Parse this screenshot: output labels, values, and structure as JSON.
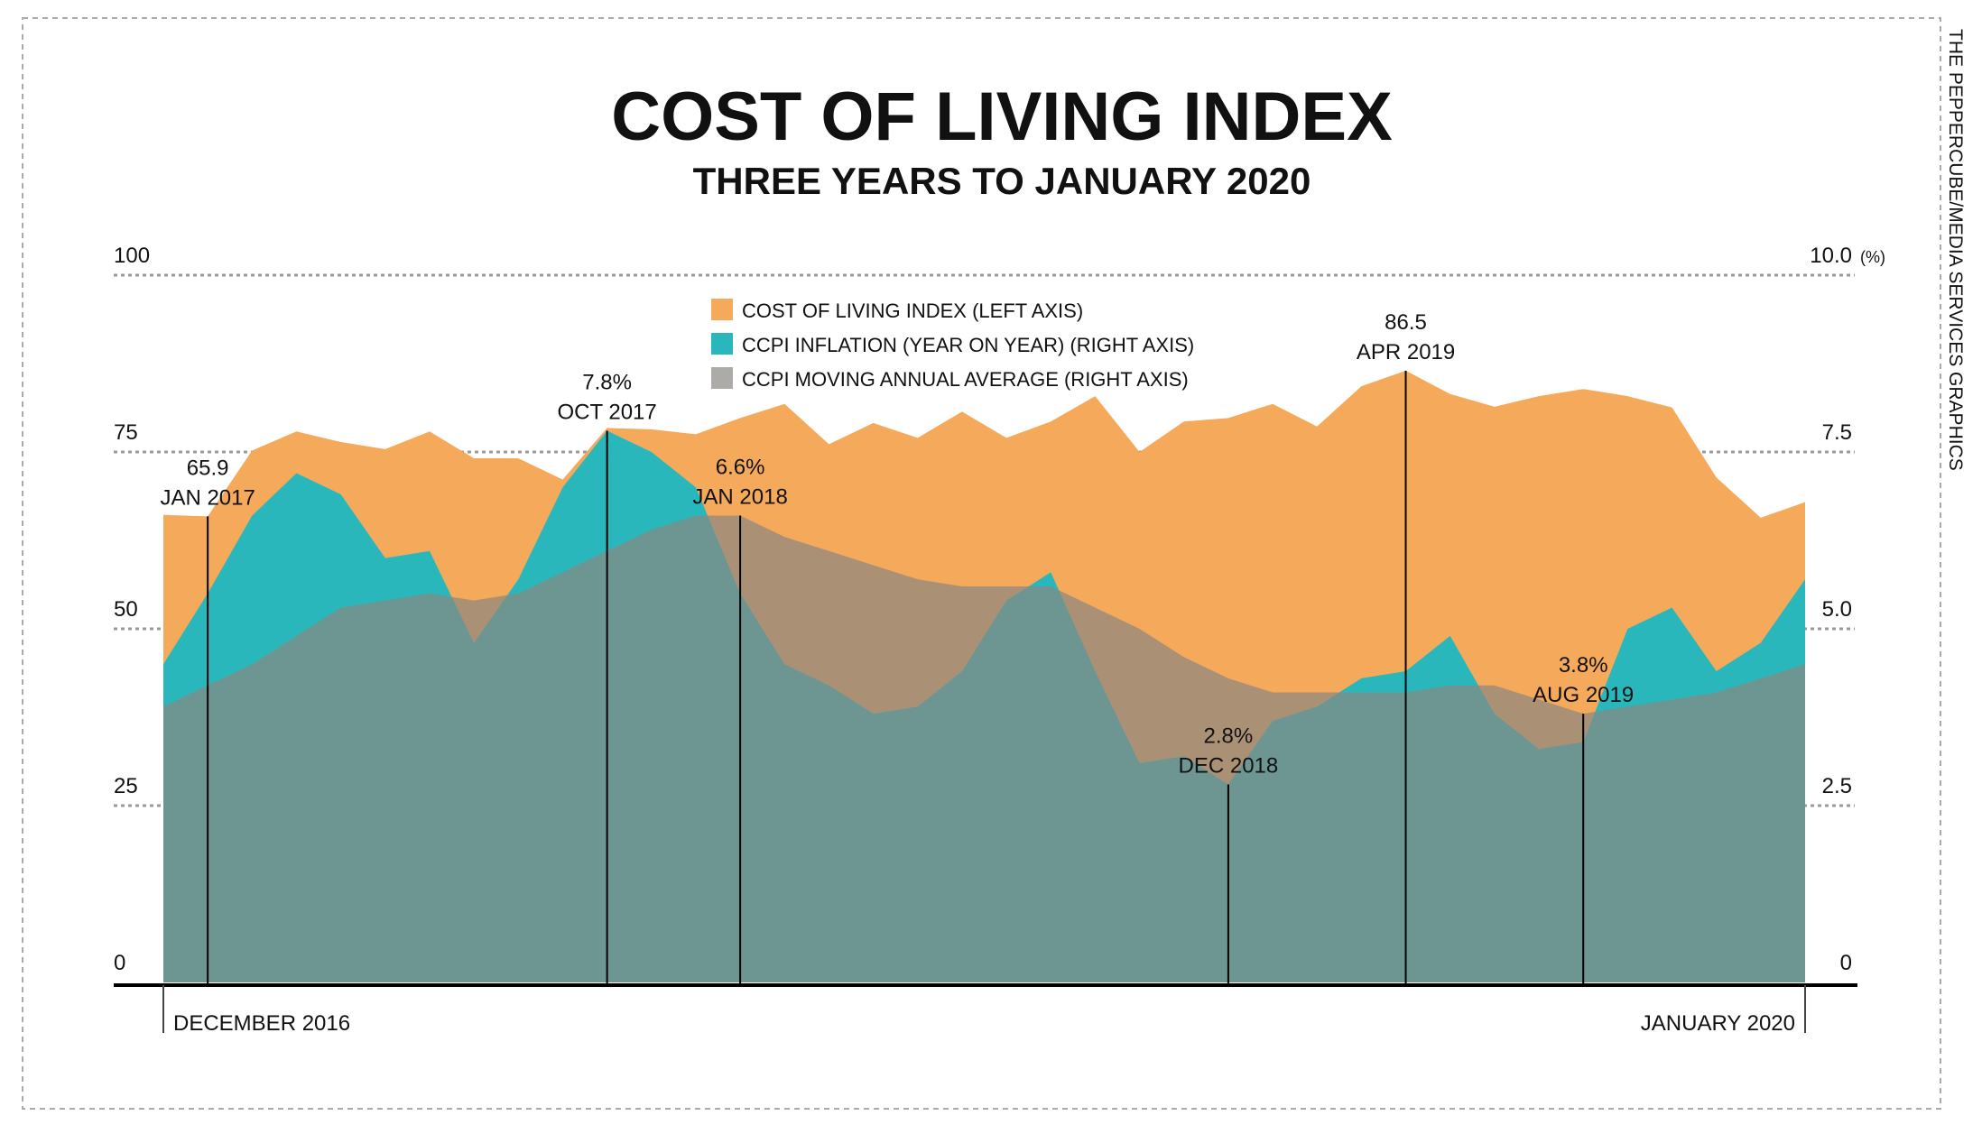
{
  "chart_data": {
    "type": "area",
    "title": "COST OF LIVING INDEX",
    "subtitle": "THREE YEARS TO JANUARY 2020",
    "credit": "THE PEPPERCUBE/MEDIA SERVICES GRAPHICS",
    "categories": [
      "DECEMBER 2016",
      null,
      null,
      null,
      null,
      null,
      null,
      null,
      null,
      null,
      null,
      null,
      null,
      null,
      null,
      null,
      null,
      null,
      null,
      null,
      null,
      null,
      null,
      null,
      null,
      null,
      null,
      null,
      null,
      null,
      null,
      null,
      null,
      null,
      null,
      null,
      null,
      "JANUARY 2020"
    ],
    "annotation_dates": [
      null,
      "JAN 2017",
      null,
      null,
      null,
      null,
      null,
      null,
      null,
      null,
      "OCT 2017",
      null,
      null,
      "JAN 2018",
      null,
      null,
      null,
      null,
      null,
      null,
      null,
      null,
      null,
      null,
      "DEC 2018",
      null,
      null,
      null,
      "APR 2019",
      null,
      null,
      null,
      "AUG 2019",
      null,
      null,
      null,
      null,
      null
    ],
    "series": [
      {
        "name": "COST OF LIVING INDEX (LEFT AXIS)",
        "color": "#f5a95a",
        "opacity": 1,
        "values": [
          66.1,
          65.9,
          75.2,
          77.9,
          76.4,
          75.4,
          77.9,
          74.1,
          74.1,
          71.1,
          78.4,
          78.2,
          77.5,
          79.8,
          81.8,
          76.1,
          79.1,
          77.0,
          80.7,
          77.0,
          79.3,
          82.9,
          75.0,
          79.3,
          79.8,
          81.8,
          78.6,
          84.3,
          86.5,
          83.2,
          81.4,
          82.9,
          83.9,
          82.9,
          81.3,
          71.4,
          65.7,
          67.9
        ],
        "value_labels": [
          null,
          "65.9",
          null,
          null,
          null,
          null,
          null,
          null,
          null,
          null,
          null,
          null,
          null,
          null,
          null,
          null,
          null,
          null,
          null,
          null,
          null,
          null,
          null,
          null,
          null,
          null,
          null,
          null,
          "86.5",
          null,
          null,
          null,
          null,
          null,
          null,
          null,
          null,
          null
        ]
      },
      {
        "name": "CCPI INFLATION (YEAR ON YEAR) (RIGHT AXIS)",
        "color": "#2ab7bc",
        "opacity": 1,
        "axis": "y2",
        "values": [
          4.5,
          5.5,
          6.6,
          7.2,
          6.9,
          6.0,
          6.1,
          4.8,
          5.7,
          7.0,
          7.8,
          7.5,
          7.0,
          5.5,
          4.5,
          4.2,
          3.8,
          3.9,
          4.4,
          5.4,
          5.8,
          4.4,
          3.1,
          3.2,
          2.8,
          3.7,
          3.9,
          4.3,
          4.4,
          4.9,
          3.8,
          3.3,
          3.4,
          5.0,
          5.3,
          4.4,
          4.8,
          5.7
        ],
        "value_labels": [
          null,
          null,
          null,
          null,
          null,
          null,
          null,
          null,
          null,
          null,
          "7.8%",
          null,
          null,
          null,
          null,
          null,
          null,
          null,
          null,
          null,
          null,
          null,
          null,
          null,
          "2.8%",
          null,
          null,
          null,
          null,
          null,
          null,
          null,
          null,
          null,
          null,
          null,
          null,
          null
        ]
      },
      {
        "name": "CCPI MOVING ANNUAL AVERAGE (RIGHT AXIS)",
        "color": "#8a8881",
        "opacity": 0.7,
        "axis": "y2",
        "values": [
          3.9,
          4.2,
          4.5,
          4.9,
          5.3,
          5.4,
          5.5,
          5.4,
          5.5,
          5.8,
          6.1,
          6.4,
          6.6,
          6.6,
          6.3,
          6.1,
          5.9,
          5.7,
          5.6,
          5.6,
          5.6,
          5.3,
          5.0,
          4.6,
          4.3,
          4.1,
          4.1,
          4.1,
          4.1,
          4.2,
          4.2,
          4.0,
          3.8,
          3.9,
          4.0,
          4.1,
          4.3,
          4.5
        ],
        "value_labels": [
          null,
          null,
          null,
          null,
          null,
          null,
          null,
          null,
          null,
          null,
          null,
          null,
          null,
          "6.6%",
          null,
          null,
          null,
          null,
          null,
          null,
          null,
          null,
          null,
          null,
          null,
          null,
          null,
          null,
          null,
          null,
          null,
          null,
          "3.8%",
          null,
          null,
          null,
          null,
          null
        ]
      }
    ],
    "ylim": [
      0,
      100
    ],
    "yticks": [
      0,
      25,
      50,
      75,
      100
    ],
    "y2lim": [
      0,
      10
    ],
    "y2ticks": [
      0,
      {
        "value": 2.5,
        "label": "2.5"
      },
      {
        "value": 5,
        "label": "5.0"
      },
      {
        "value": 7.5,
        "label": "7.5"
      },
      {
        "value": 10,
        "label": "10.0"
      }
    ],
    "y2_unit": "(%)",
    "grid": true
  }
}
